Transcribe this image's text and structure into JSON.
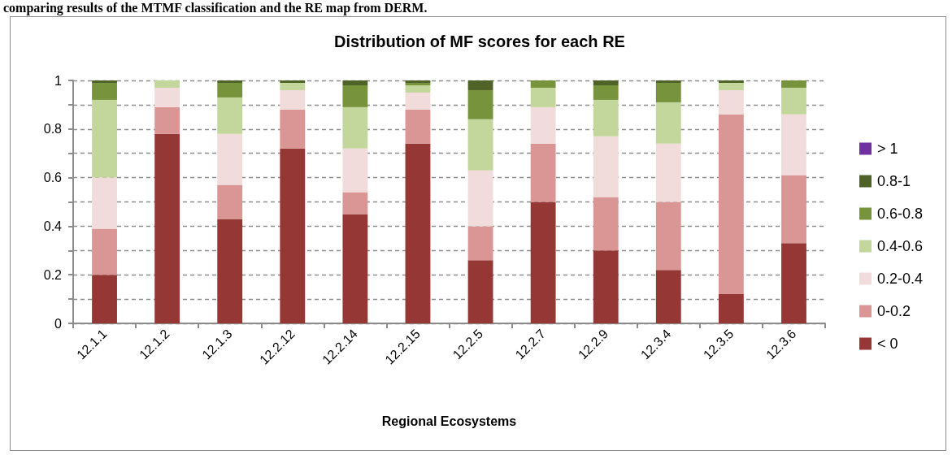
{
  "chart_data": {
    "type": "bar",
    "stacked": true,
    "title": "Distribution of MF scores for each RE",
    "xlabel": "Regional Ecosystems",
    "annotations": [
      "comparing results of the MTMF classification and the RE map from DERM."
    ],
    "categories": [
      "12.1.1",
      "12.1.2",
      "12.1.3",
      "12.2.12",
      "12.2.14",
      "12.2.15",
      "12.2.5",
      "12.2.7",
      "12.2.9",
      "12.3.4",
      "12.3.5",
      "12.3.6"
    ],
    "series": [
      {
        "name": "< 0",
        "color": "#953735",
        "values": [
          0.2,
          0.78,
          0.43,
          0.72,
          0.45,
          0.74,
          0.26,
          0.5,
          0.3,
          0.22,
          0.12,
          0.33
        ]
      },
      {
        "name": "0-0.2",
        "color": "#d99694",
        "values": [
          0.19,
          0.11,
          0.14,
          0.16,
          0.09,
          0.14,
          0.14,
          0.24,
          0.22,
          0.28,
          0.74,
          0.28
        ]
      },
      {
        "name": "0.2-0.4",
        "color": "#f2dcdb",
        "values": [
          0.21,
          0.08,
          0.21,
          0.08,
          0.18,
          0.07,
          0.23,
          0.15,
          0.25,
          0.24,
          0.1,
          0.25
        ]
      },
      {
        "name": "0.4-0.6",
        "color": "#c3d69b",
        "values": [
          0.32,
          0.03,
          0.15,
          0.03,
          0.17,
          0.03,
          0.21,
          0.08,
          0.15,
          0.17,
          0.03,
          0.11
        ]
      },
      {
        "name": "0.6-0.8",
        "color": "#77933c",
        "values": [
          0.07,
          0,
          0.06,
          0,
          0.09,
          0.01,
          0.12,
          0.03,
          0.06,
          0.08,
          0,
          0.03
        ]
      },
      {
        "name": "0.8-1",
        "color": "#4f6228",
        "values": [
          0.01,
          0,
          0.01,
          0.01,
          0.02,
          0.01,
          0.04,
          0,
          0.02,
          0.01,
          0.01,
          0
        ]
      },
      {
        "name": "> 1",
        "color": "#7030a0",
        "values": [
          0,
          0,
          0,
          0,
          0,
          0,
          0,
          0,
          0,
          0,
          0,
          0
        ]
      }
    ],
    "ylim": [
      0,
      1
    ],
    "yticks": [
      0,
      {
        "value": 0.1,
        "label": null
      },
      0.2,
      {
        "value": 0.3,
        "label": null
      },
      0.4,
      {
        "value": 0.5,
        "label": null
      },
      0.6,
      {
        "value": 0.7,
        "label": null
      },
      0.8,
      {
        "value": 0.9,
        "label": null
      },
      1
    ],
    "grid": "y",
    "legend": "right"
  }
}
